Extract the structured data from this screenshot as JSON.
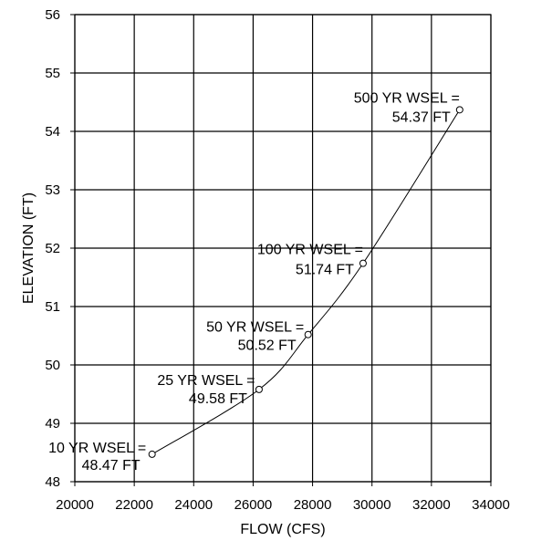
{
  "chart_data": {
    "type": "line",
    "title": "",
    "xlabel": "FLOW (CFS)",
    "ylabel": "ELEVATION (FT)",
    "xlim": [
      20000,
      34000
    ],
    "ylim": [
      48,
      56
    ],
    "xticks": [
      20000,
      22000,
      24000,
      26000,
      28000,
      30000,
      32000,
      34000
    ],
    "yticks": [
      48,
      49,
      50,
      51,
      52,
      53,
      54,
      55,
      56
    ],
    "grid": true,
    "legend": "none",
    "series": [
      {
        "points": [
          {
            "x": 22600,
            "y": 48.47,
            "label_line1": "10 YR WSEL =",
            "label_line2": "48.47 FT"
          },
          {
            "x": 26200,
            "y": 49.58,
            "label_line1": "25 YR WSEL =",
            "label_line2": "49.58 FT"
          },
          {
            "x": 27850,
            "y": 50.52,
            "label_line1": "50 YR WSEL =",
            "label_line2": "50.52 FT"
          },
          {
            "x": 29700,
            "y": 51.74,
            "label_line1": "100 YR WSEL =",
            "label_line2": "51.74 FT"
          },
          {
            "x": 32950,
            "y": 54.37,
            "label_line1": "500 YR WSEL =",
            "label_line2": "54.37 FT"
          }
        ]
      }
    ]
  }
}
